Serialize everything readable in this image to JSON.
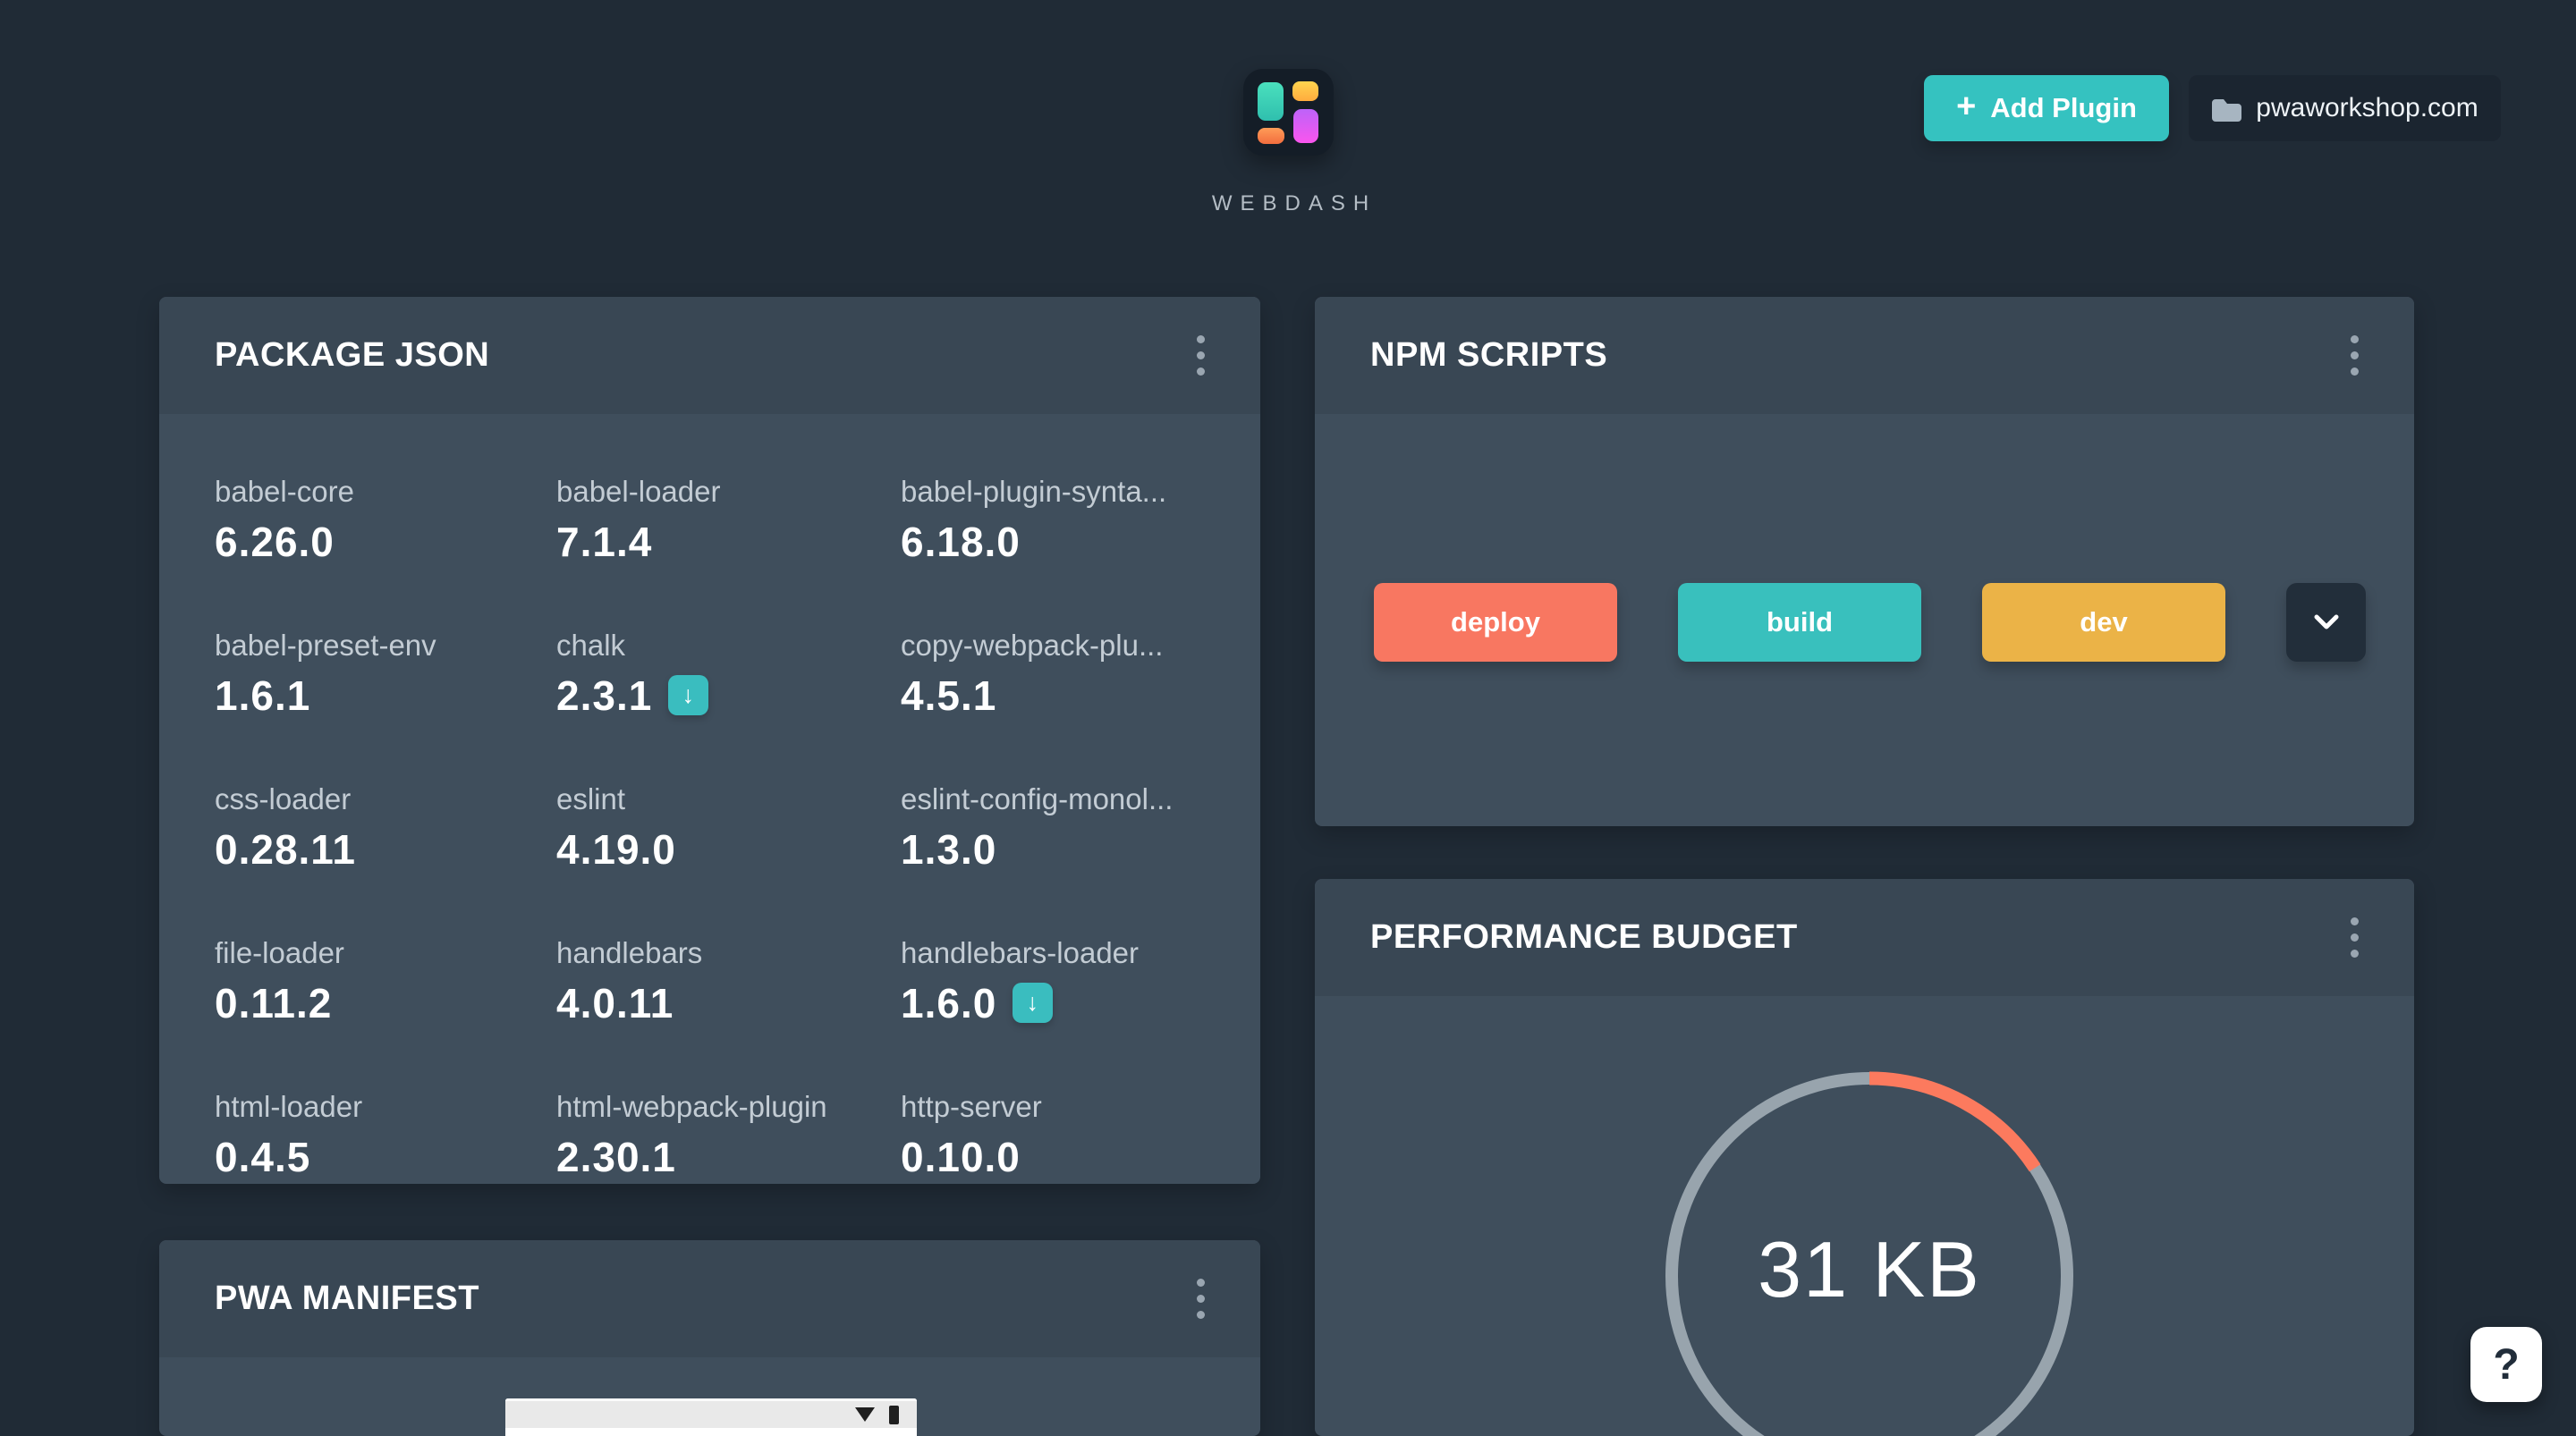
{
  "brand": {
    "name": "WEBDASH"
  },
  "topbar": {
    "add_plugin": {
      "label": "Add Plugin",
      "color": "#35c2c0"
    },
    "domain": {
      "label": "pwaworkshop.com"
    }
  },
  "cards": {
    "package_json": {
      "title": "PACKAGE JSON",
      "packages": [
        {
          "name": "babel-core",
          "version": "6.26.0",
          "update": false
        },
        {
          "name": "babel-loader",
          "version": "7.1.4",
          "update": false
        },
        {
          "name": "babel-plugin-synta...",
          "version": "6.18.0",
          "update": false
        },
        {
          "name": "babel-preset-env",
          "version": "1.6.1",
          "update": false
        },
        {
          "name": "chalk",
          "version": "2.3.1",
          "update": true
        },
        {
          "name": "copy-webpack-plu...",
          "version": "4.5.1",
          "update": false
        },
        {
          "name": "css-loader",
          "version": "0.28.11",
          "update": false
        },
        {
          "name": "eslint",
          "version": "4.19.0",
          "update": false
        },
        {
          "name": "eslint-config-monol...",
          "version": "1.3.0",
          "update": false
        },
        {
          "name": "file-loader",
          "version": "0.11.2",
          "update": false
        },
        {
          "name": "handlebars",
          "version": "4.0.11",
          "update": false
        },
        {
          "name": "handlebars-loader",
          "version": "1.6.0",
          "update": true
        },
        {
          "name": "html-loader",
          "version": "0.4.5",
          "update": false
        },
        {
          "name": "html-webpack-plugin",
          "version": "2.30.1",
          "update": false
        },
        {
          "name": "http-server",
          "version": "0.10.0",
          "update": false
        }
      ],
      "update_badge": {
        "color": "#3abdbf",
        "arrow_glyph": "↓"
      }
    },
    "npm_scripts": {
      "title": "NPM SCRIPTS",
      "scripts": [
        {
          "label": "deploy",
          "color": "#f87761"
        },
        {
          "label": "build",
          "color": "#39c0bd"
        },
        {
          "label": "dev",
          "color": "#ebb347"
        }
      ]
    },
    "performance_budget": {
      "title": "PERFORMANCE BUDGET",
      "gauge": {
        "label": "31 KB",
        "percent": 15.8,
        "arc_color": "#fc7a5e",
        "track_color": "#98a4ad"
      }
    },
    "pwa_manifest": {
      "title": "PWA MANIFEST"
    }
  },
  "help_button": {
    "label": "?"
  }
}
